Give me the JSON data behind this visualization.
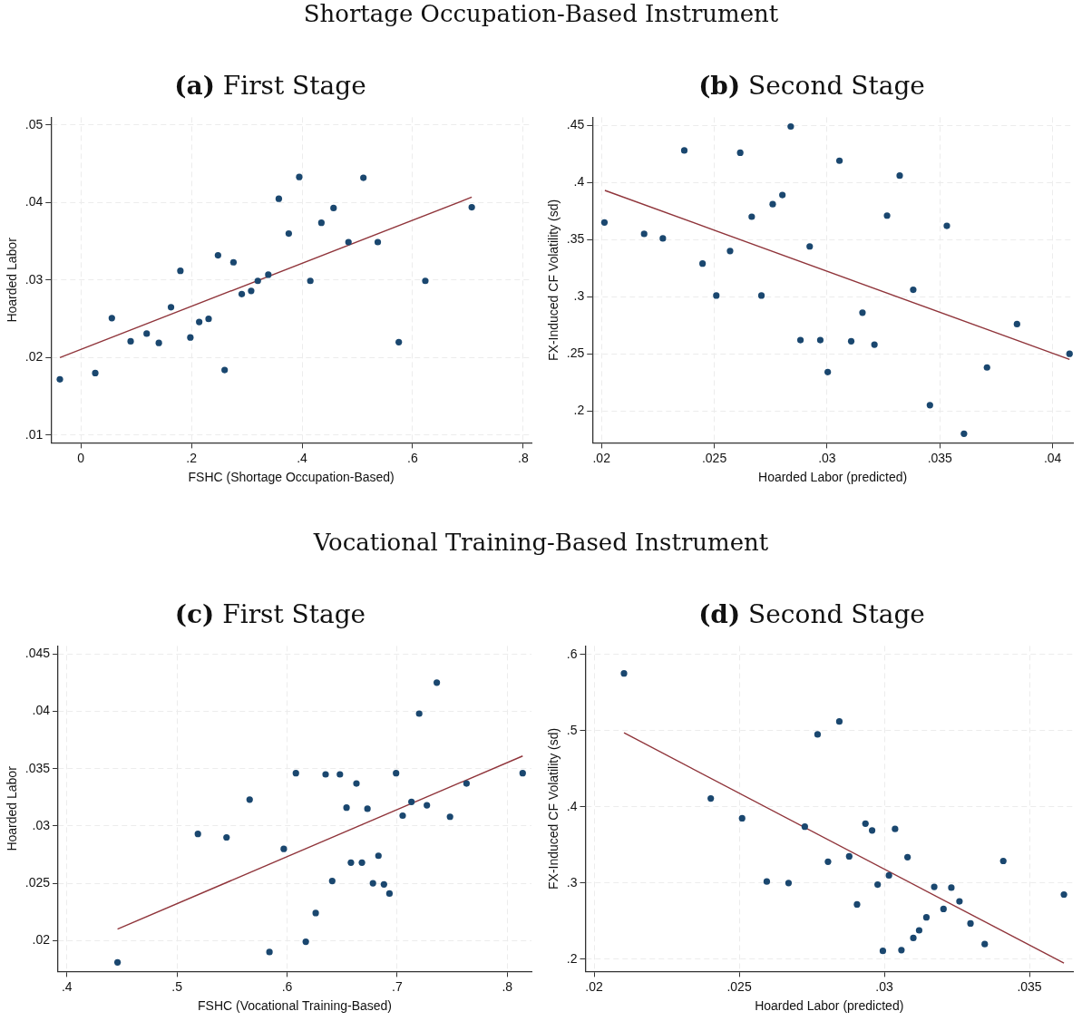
{
  "chart_data": [
    {
      "type": "scatter",
      "title": "Shortage Occupation-Based Instrument",
      "subtitle": "(a) First Stage",
      "xlabel": "FSHC (Shortage Occupation-Based)",
      "ylabel": "Hoarded Labor",
      "xlim": [
        -0.054,
        0.815
      ],
      "ylim": [
        0.009,
        0.051
      ],
      "xticks": [
        0,
        {
          "value": 0.2,
          "label": ".2"
        },
        {
          "value": 0.4,
          "label": ".4"
        },
        {
          "value": 0.6,
          "label": ".6"
        },
        {
          "value": 0.8,
          "label": ".8"
        }
      ],
      "yticks": [
        {
          "value": 0.01,
          "label": ".01"
        },
        {
          "value": 0.02,
          "label": ".02"
        },
        {
          "value": 0.03,
          "label": ".03"
        },
        {
          "value": 0.04,
          "label": ".04"
        },
        {
          "value": 0.05,
          "label": ".05"
        }
      ],
      "grid": true,
      "series": [
        {
          "type": "scatter",
          "marker": "circle",
          "color": "#1a476f",
          "x": [
            -0.038,
            0.026,
            0.056,
            0.09,
            0.119,
            0.141,
            0.163,
            0.18,
            0.198,
            0.214,
            0.231,
            0.248,
            0.26,
            0.276,
            0.291,
            0.308,
            0.32,
            0.339,
            0.358,
            0.376,
            0.395,
            0.415,
            0.435,
            0.457,
            0.484,
            0.511,
            0.537,
            0.575,
            0.623,
            0.707
          ],
          "values": [
            0.0172,
            0.018,
            0.0251,
            0.0221,
            0.0231,
            0.0219,
            0.0265,
            0.0312,
            0.0226,
            0.0246,
            0.025,
            0.0332,
            0.0184,
            0.0323,
            0.0282,
            0.0286,
            0.0299,
            0.0307,
            0.0405,
            0.036,
            0.0433,
            0.0299,
            0.0374,
            0.0393,
            0.0349,
            0.0432,
            0.0349,
            0.022,
            0.0299,
            0.0394
          ]
        },
        {
          "type": "line",
          "marker": "none",
          "color": "#90353b",
          "x": [
            -0.038,
            0.707
          ],
          "values": [
            0.02,
            0.0407
          ]
        }
      ]
    },
    {
      "type": "scatter",
      "subtitle": "(b) Second Stage",
      "xlabel": "Hoarded Labor (predicted)",
      "ylabel": "FX-Induced CF Volatility (sd)",
      "xlim": [
        0.0196,
        0.0409
      ],
      "ylim": [
        0.172,
        0.457
      ],
      "xticks": [
        {
          "value": 0.02,
          "label": ".02"
        },
        {
          "value": 0.025,
          "label": ".025"
        },
        {
          "value": 0.03,
          "label": ".03"
        },
        {
          "value": 0.035,
          "label": ".035"
        },
        {
          "value": 0.04,
          "label": ".04"
        }
      ],
      "yticks": [
        {
          "value": 0.2,
          "label": ".2"
        },
        {
          "value": 0.25,
          "label": ".25"
        },
        {
          "value": 0.3,
          "label": ".3"
        },
        {
          "value": 0.35,
          "label": ".35"
        },
        {
          "value": 0.4,
          "label": ".4"
        },
        {
          "value": 0.45,
          "label": ".45"
        }
      ],
      "grid": true,
      "series": [
        {
          "type": "scatter",
          "marker": "circle",
          "color": "#1a476f",
          "x": [
            0.02013,
            0.02189,
            0.02272,
            0.02367,
            0.02448,
            0.02509,
            0.0257,
            0.02615,
            0.02666,
            0.02709,
            0.02759,
            0.02802,
            0.02839,
            0.02882,
            0.02923,
            0.0297,
            0.03003,
            0.03055,
            0.03107,
            0.03157,
            0.0321,
            0.03266,
            0.03322,
            0.03382,
            0.03456,
            0.03531,
            0.03607,
            0.03709,
            0.03842,
            0.04075
          ],
          "values": [
            0.365,
            0.355,
            0.351,
            0.428,
            0.329,
            0.301,
            0.34,
            0.426,
            0.37,
            0.301,
            0.381,
            0.389,
            0.449,
            0.262,
            0.344,
            0.262,
            0.234,
            0.419,
            0.261,
            0.286,
            0.258,
            0.371,
            0.406,
            0.306,
            0.205,
            0.362,
            0.18,
            0.238,
            0.276,
            0.25
          ]
        },
        {
          "type": "line",
          "marker": "none",
          "color": "#90353b",
          "x": [
            0.02015,
            0.04075
          ],
          "values": [
            0.393,
            0.245
          ]
        }
      ]
    },
    {
      "type": "scatter",
      "title": "Vocational Training-Based Instrument",
      "subtitle": "(c) First Stage",
      "xlabel": "FSHC (Vocational Training-Based)",
      "ylabel": "Hoarded Labor",
      "xlim": [
        0.392,
        0.822
      ],
      "ylim": [
        0.0173,
        0.0457
      ],
      "xticks": [
        {
          "value": 0.4,
          "label": ".4"
        },
        {
          "value": 0.5,
          "label": ".5"
        },
        {
          "value": 0.6,
          "label": ".6"
        },
        {
          "value": 0.7,
          "label": ".7"
        },
        {
          "value": 0.8,
          "label": ".8"
        }
      ],
      "yticks": [
        {
          "value": 0.02,
          "label": ".02"
        },
        {
          "value": 0.025,
          "label": ".025"
        },
        {
          "value": 0.03,
          "label": ".03"
        },
        {
          "value": 0.035,
          "label": ".035"
        },
        {
          "value": 0.04,
          "label": ".04"
        },
        {
          "value": 0.045,
          "label": ".045"
        }
      ],
      "grid": true,
      "series": [
        {
          "type": "scatter",
          "marker": "circle",
          "color": "#1a476f",
          "x": [
            0.446,
            0.519,
            0.545,
            0.566,
            0.584,
            0.597,
            0.608,
            0.617,
            0.626,
            0.635,
            0.641,
            0.648,
            0.654,
            0.658,
            0.663,
            0.668,
            0.673,
            0.678,
            0.683,
            0.688,
            0.693,
            0.699,
            0.705,
            0.713,
            0.72,
            0.727,
            0.736,
            0.748,
            0.763,
            0.814
          ],
          "values": [
            0.0181,
            0.0293,
            0.029,
            0.0323,
            0.019,
            0.028,
            0.0346,
            0.0199,
            0.0224,
            0.0345,
            0.0252,
            0.0345,
            0.0316,
            0.0268,
            0.0337,
            0.0268,
            0.0315,
            0.025,
            0.0274,
            0.0249,
            0.0241,
            0.0346,
            0.0309,
            0.0321,
            0.0398,
            0.0318,
            0.0425,
            0.0308,
            0.0337,
            0.0346
          ]
        },
        {
          "type": "line",
          "marker": "none",
          "color": "#90353b",
          "x": [
            0.446,
            0.814
          ],
          "values": [
            0.021,
            0.0361
          ]
        }
      ]
    },
    {
      "type": "scatter",
      "subtitle": "(d) Second Stage",
      "xlabel": "Hoarded Labor (predicted)",
      "ylabel": "FX-Induced CF Volatility (sd)",
      "xlim": [
        0.0197,
        0.0365
      ],
      "ylim": [
        0.184,
        0.611
      ],
      "xticks": [
        {
          "value": 0.02,
          "label": ".02"
        },
        {
          "value": 0.025,
          "label": ".025"
        },
        {
          "value": 0.03,
          "label": ".03"
        },
        {
          "value": 0.035,
          "label": ".035"
        }
      ],
      "yticks": [
        {
          "value": 0.2,
          "label": ".2"
        },
        {
          "value": 0.3,
          "label": ".3"
        },
        {
          "value": 0.4,
          "label": ".4"
        },
        {
          "value": 0.5,
          "label": ".5"
        },
        {
          "value": 0.6,
          "label": ".6"
        }
      ],
      "grid": true,
      "series": [
        {
          "type": "scatter",
          "marker": "circle",
          "color": "#1a476f",
          "x": [
            0.02103,
            0.02402,
            0.0251,
            0.02595,
            0.0267,
            0.02726,
            0.0277,
            0.02806,
            0.02845,
            0.02879,
            0.02906,
            0.02935,
            0.02958,
            0.02977,
            0.02995,
            0.03016,
            0.03037,
            0.03059,
            0.0308,
            0.031,
            0.0312,
            0.03145,
            0.03172,
            0.03204,
            0.03231,
            0.03259,
            0.03297,
            0.03346,
            0.0341,
            0.03619
          ],
          "values": [
            0.575,
            0.411,
            0.385,
            0.302,
            0.3,
            0.374,
            0.495,
            0.328,
            0.512,
            0.335,
            0.272,
            0.378,
            0.369,
            0.298,
            0.211,
            0.31,
            0.371,
            0.212,
            0.334,
            0.228,
            0.238,
            0.255,
            0.295,
            0.266,
            0.294,
            0.276,
            0.247,
            0.22,
            0.329,
            0.285
          ]
        },
        {
          "type": "line",
          "marker": "none",
          "color": "#90353b",
          "x": [
            0.02103,
            0.03619
          ],
          "values": [
            0.497,
            0.195
          ]
        }
      ]
    }
  ]
}
